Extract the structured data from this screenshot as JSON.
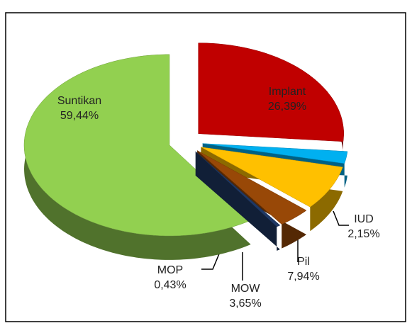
{
  "chart_data": {
    "type": "pie3d",
    "categories": [
      "Implant",
      "IUD",
      "Pil",
      "MOW",
      "MOP",
      "Suntikan"
    ],
    "values": [
      26.39,
      2.15,
      7.94,
      3.65,
      0.43,
      59.44
    ],
    "value_labels": [
      "26,39%",
      "2,15%",
      "7,94%",
      "3,65%",
      "0,43%",
      "59,44%"
    ],
    "colors": [
      "#c00000",
      "#00b0f0",
      "#ffc000",
      "#984807",
      "#1f3864",
      "#92d050"
    ]
  }
}
